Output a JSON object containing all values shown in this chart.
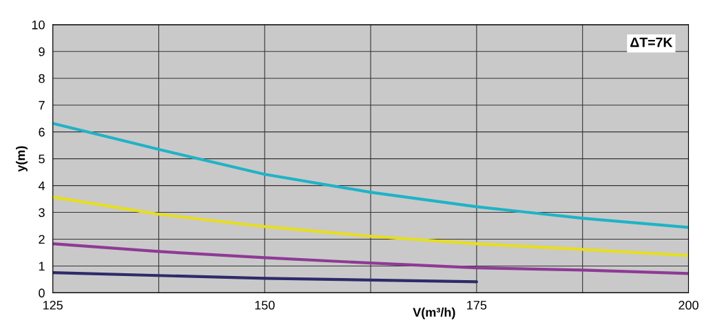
{
  "chart_data": {
    "type": "line",
    "xlabel": "V(m³/h)",
    "ylabel": "y(m)",
    "annotations": [
      "ΔT=7K"
    ],
    "xlim": [
      125,
      200
    ],
    "ylim": [
      0,
      10
    ],
    "xticks": [
      125,
      {
        "value": 137.5,
        "label": null
      },
      150,
      {
        "value": 162.5,
        "label": null
      },
      175,
      {
        "value": 187.5,
        "label": null
      },
      200
    ],
    "yticks": [
      0,
      1,
      2,
      3,
      4,
      5,
      6,
      7,
      8,
      9,
      10
    ],
    "grid": true,
    "marker": "none",
    "line_style": "solid",
    "series": [
      {
        "color": "#1fb3c6",
        "x": [
          125,
          137.5,
          150,
          162.5,
          175,
          187.5,
          200
        ],
        "values": [
          6.32,
          5.35,
          4.42,
          3.75,
          3.21,
          2.78,
          2.44
        ]
      },
      {
        "color": "#e6de1e",
        "x": [
          125,
          137.5,
          150,
          162.5,
          175,
          187.5,
          200
        ],
        "values": [
          3.57,
          2.93,
          2.47,
          2.11,
          1.83,
          1.62,
          1.39
        ]
      },
      {
        "color": "#8e3a96",
        "x": [
          125,
          137.5,
          150,
          162.5,
          175,
          187.5,
          200
        ],
        "values": [
          1.83,
          1.54,
          1.31,
          1.11,
          0.93,
          0.85,
          0.72
        ]
      },
      {
        "color": "#2e2a6a",
        "x": [
          125,
          150,
          175
        ],
        "values": [
          0.75,
          0.54,
          0.41
        ]
      }
    ]
  }
}
